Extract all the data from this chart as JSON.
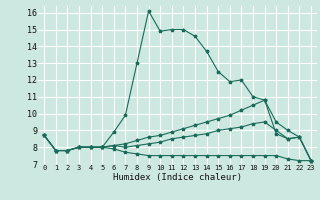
{
  "xlabel": "Humidex (Indice chaleur)",
  "bg_color": "#cde8e0",
  "grid_color": "#ffffff",
  "line_color": "#1a6b5a",
  "x_values": [
    0,
    1,
    2,
    3,
    4,
    5,
    6,
    7,
    8,
    9,
    10,
    11,
    12,
    13,
    14,
    15,
    16,
    17,
    18,
    19,
    20,
    21,
    22,
    23
  ],
  "series": [
    [
      8.7,
      7.8,
      7.8,
      8.0,
      8.0,
      8.0,
      8.9,
      9.9,
      13.0,
      16.1,
      14.9,
      15.0,
      15.0,
      14.6,
      13.7,
      12.5,
      11.9,
      12.0,
      11.0,
      10.8,
      8.8,
      8.5,
      8.6,
      7.2
    ],
    [
      8.7,
      7.8,
      7.8,
      8.0,
      8.0,
      8.0,
      8.1,
      8.2,
      8.4,
      8.6,
      8.7,
      8.9,
      9.1,
      9.3,
      9.5,
      9.7,
      9.9,
      10.2,
      10.5,
      10.8,
      9.5,
      9.0,
      8.6,
      7.2
    ],
    [
      8.7,
      7.8,
      7.8,
      8.0,
      8.0,
      8.0,
      8.1,
      8.0,
      8.1,
      8.2,
      8.3,
      8.5,
      8.6,
      8.7,
      8.8,
      9.0,
      9.1,
      9.2,
      9.4,
      9.5,
      9.0,
      8.5,
      8.6,
      7.2
    ],
    [
      8.7,
      7.8,
      7.8,
      8.0,
      8.0,
      8.0,
      7.9,
      7.7,
      7.6,
      7.5,
      7.5,
      7.5,
      7.5,
      7.5,
      7.5,
      7.5,
      7.5,
      7.5,
      7.5,
      7.5,
      7.5,
      7.3,
      7.2,
      7.2
    ]
  ],
  "xlim": [
    -0.5,
    23.5
  ],
  "ylim": [
    7.0,
    16.4
  ],
  "yticks": [
    7,
    8,
    9,
    10,
    11,
    12,
    13,
    14,
    15,
    16
  ],
  "xticks": [
    0,
    1,
    2,
    3,
    4,
    5,
    6,
    7,
    8,
    9,
    10,
    11,
    12,
    13,
    14,
    15,
    16,
    17,
    18,
    19,
    20,
    21,
    22,
    23
  ]
}
